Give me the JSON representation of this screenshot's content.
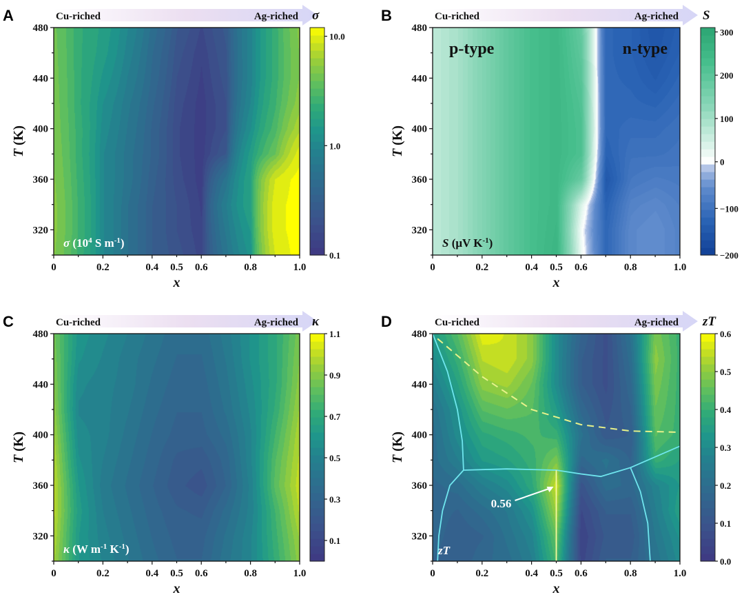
{
  "chart_data": [
    {
      "panel": "A",
      "type": "heatmap",
      "title": "σ",
      "colorbar_title": "σ",
      "inset_label": {
        "symbol": "σ",
        "text": " (10",
        "sup1": "4",
        "mid": " S m",
        "sup2": "-1",
        "end": ")"
      },
      "xlabel": "x",
      "ylabel": "T (K)",
      "xlim": [
        0,
        1.0
      ],
      "ylim": [
        300,
        480
      ],
      "x_ticks": [
        "0",
        "0.2",
        "0.4",
        "0.5",
        "0.6",
        "0.8",
        "1.0"
      ],
      "x_tick_values": [
        0,
        0.2,
        0.4,
        0.5,
        0.6,
        0.8,
        1.0
      ],
      "y_ticks": [
        "320",
        "360",
        "400",
        "440",
        "480"
      ],
      "y_tick_values": [
        320,
        360,
        400,
        440,
        480
      ],
      "colormap": "viridis",
      "colorbar_scale": "log",
      "colorbar_range": [
        0.1,
        12
      ],
      "colorbar_ticks": [
        "0.1",
        "1.0",
        "10.0"
      ],
      "colorbar_tick_values": [
        0.1,
        1.0,
        10.0
      ],
      "composition_arrow": {
        "left": "Cu-riched",
        "right": "Ag-riched"
      },
      "x": [
        0,
        0.1,
        0.2,
        0.3,
        0.4,
        0.5,
        0.6,
        0.7,
        0.8,
        0.9,
        1.0
      ],
      "y": [
        300,
        320,
        340,
        360,
        380,
        400,
        420,
        440,
        460,
        480
      ],
      "z": [
        [
          5.0,
          2.5,
          1.0,
          0.55,
          0.3,
          0.22,
          0.15,
          0.6,
          1.3,
          9.0,
          12.0
        ],
        [
          5.2,
          2.6,
          1.0,
          0.55,
          0.3,
          0.2,
          0.14,
          0.7,
          1.5,
          10.0,
          12.0
        ],
        [
          5.2,
          2.6,
          1.0,
          0.55,
          0.3,
          0.2,
          0.13,
          0.8,
          1.8,
          10.0,
          12.0
        ],
        [
          5.0,
          2.5,
          1.0,
          0.6,
          0.32,
          0.18,
          0.12,
          0.6,
          1.8,
          9.0,
          12.0
        ],
        [
          4.8,
          2.4,
          1.0,
          0.6,
          0.35,
          0.17,
          0.12,
          0.25,
          1.6,
          4.0,
          10.0
        ],
        [
          4.6,
          2.4,
          1.1,
          0.65,
          0.35,
          0.17,
          0.12,
          0.2,
          1.2,
          3.0,
          7.0
        ],
        [
          4.5,
          2.3,
          1.2,
          0.7,
          0.38,
          0.18,
          0.12,
          0.2,
          1.0,
          2.6,
          5.5
        ],
        [
          4.4,
          2.3,
          1.4,
          0.8,
          0.42,
          0.2,
          0.13,
          0.22,
          0.9,
          2.4,
          5.0
        ],
        [
          4.3,
          2.3,
          1.6,
          0.9,
          0.45,
          0.22,
          0.14,
          0.24,
          0.9,
          2.4,
          5.0
        ],
        [
          4.2,
          2.3,
          1.7,
          1.0,
          0.5,
          0.25,
          0.16,
          0.26,
          0.9,
          2.4,
          5.2
        ]
      ]
    },
    {
      "panel": "B",
      "type": "heatmap",
      "title": "S",
      "colorbar_title": "S",
      "inset_label": {
        "symbol": "S",
        "text": " (μV K",
        "sup1": "-1",
        "end": ")"
      },
      "region_labels": [
        "p-type",
        "n-type"
      ],
      "xlabel": "x",
      "ylabel": "T (K)",
      "xlim": [
        0,
        1.0
      ],
      "ylim": [
        300,
        480
      ],
      "x_ticks": [
        "0",
        "0.2",
        "0.4",
        "0.5",
        "0.6",
        "0.8",
        "1.0"
      ],
      "x_tick_values": [
        0,
        0.2,
        0.4,
        0.5,
        0.6,
        0.8,
        1.0
      ],
      "y_ticks": [
        "320",
        "360",
        "400",
        "440",
        "480"
      ],
      "y_tick_values": [
        320,
        360,
        400,
        440,
        480
      ],
      "colormap": "green-white-blue diverging",
      "colorbar_scale": "linear",
      "colorbar_range": [
        -200,
        310
      ],
      "colorbar_ticks": [
        "300",
        "200",
        "100",
        "0",
        "−100",
        "−200"
      ],
      "colorbar_tick_values": [
        300,
        200,
        100,
        0,
        -100,
        -200
      ],
      "composition_arrow": {
        "left": "Cu-riched",
        "right": "Ag-riched"
      },
      "x": [
        0,
        0.1,
        0.2,
        0.3,
        0.4,
        0.5,
        0.6,
        0.7,
        0.8,
        0.9,
        1.0
      ],
      "y": [
        300,
        320,
        340,
        360,
        380,
        400,
        420,
        440,
        460,
        480
      ],
      "z": [
        [
          70,
          95,
          140,
          190,
          230,
          260,
          20,
          -120,
          -60,
          -50,
          -70
        ],
        [
          70,
          95,
          140,
          190,
          230,
          255,
          10,
          -120,
          -60,
          -50,
          -70
        ],
        [
          70,
          95,
          140,
          190,
          230,
          250,
          40,
          -130,
          -70,
          -60,
          -75
        ],
        [
          70,
          95,
          140,
          190,
          230,
          250,
          180,
          -150,
          -90,
          -80,
          -85
        ],
        [
          70,
          95,
          140,
          190,
          230,
          250,
          220,
          -130,
          -100,
          -100,
          -95
        ],
        [
          70,
          95,
          140,
          190,
          230,
          250,
          220,
          -120,
          -110,
          -110,
          -100
        ],
        [
          70,
          95,
          140,
          190,
          230,
          250,
          215,
          -120,
          -120,
          -125,
          -110
        ],
        [
          70,
          95,
          140,
          190,
          230,
          250,
          205,
          -120,
          -125,
          -140,
          -120
        ],
        [
          70,
          95,
          140,
          190,
          230,
          250,
          195,
          -120,
          -130,
          -150,
          -130
        ],
        [
          70,
          95,
          140,
          190,
          230,
          250,
          185,
          -120,
          -130,
          -155,
          -135
        ]
      ]
    },
    {
      "panel": "C",
      "type": "heatmap",
      "title": "κ",
      "colorbar_title": "κ",
      "inset_label": {
        "symbol": "κ",
        "text": " (W m",
        "sup1": "-1",
        "mid": " K",
        "sup2": "-1",
        "end": ")"
      },
      "xlabel": "x",
      "ylabel": "T (K)",
      "xlim": [
        0,
        1.0
      ],
      "ylim": [
        300,
        480
      ],
      "x_ticks": [
        "0",
        "0.2",
        "0.4",
        "0.5",
        "0.6",
        "0.8",
        "1.0"
      ],
      "x_tick_values": [
        0,
        0.2,
        0.4,
        0.5,
        0.6,
        0.8,
        1.0
      ],
      "y_ticks": [
        "320",
        "360",
        "400",
        "440",
        "480"
      ],
      "y_tick_values": [
        320,
        360,
        400,
        440,
        480
      ],
      "colormap": "viridis",
      "colorbar_scale": "linear",
      "colorbar_range": [
        0.0,
        1.1
      ],
      "colorbar_ticks": [
        "1.1",
        "0.9",
        "0.7",
        "0.5",
        "0.3",
        "0.1"
      ],
      "colorbar_tick_values": [
        1.1,
        0.9,
        0.7,
        0.5,
        0.3,
        0.1
      ],
      "composition_arrow": {
        "left": "Cu-riched",
        "right": "Ag-riched"
      },
      "x": [
        0,
        0.1,
        0.2,
        0.3,
        0.4,
        0.5,
        0.6,
        0.7,
        0.8,
        0.9,
        1.0
      ],
      "y": [
        300,
        320,
        340,
        360,
        380,
        400,
        420,
        440,
        460,
        480
      ],
      "z": [
        [
          0.95,
          0.62,
          0.52,
          0.44,
          0.36,
          0.3,
          0.3,
          0.42,
          0.52,
          0.72,
          0.92
        ],
        [
          0.98,
          0.62,
          0.5,
          0.42,
          0.34,
          0.28,
          0.28,
          0.4,
          0.52,
          0.74,
          0.95
        ],
        [
          1.0,
          0.64,
          0.48,
          0.4,
          0.32,
          0.26,
          0.24,
          0.36,
          0.5,
          0.76,
          1.0
        ],
        [
          1.0,
          0.62,
          0.46,
          0.38,
          0.3,
          0.22,
          0.18,
          0.3,
          0.5,
          0.82,
          1.02
        ],
        [
          0.98,
          0.58,
          0.48,
          0.4,
          0.32,
          0.24,
          0.22,
          0.32,
          0.52,
          0.8,
          1.0
        ],
        [
          0.95,
          0.55,
          0.5,
          0.42,
          0.34,
          0.28,
          0.28,
          0.36,
          0.52,
          0.76,
          0.98
        ],
        [
          0.92,
          0.52,
          0.5,
          0.44,
          0.36,
          0.3,
          0.3,
          0.4,
          0.54,
          0.72,
          0.95
        ],
        [
          0.9,
          0.54,
          0.5,
          0.46,
          0.38,
          0.32,
          0.32,
          0.42,
          0.56,
          0.7,
          0.92
        ],
        [
          0.88,
          0.58,
          0.52,
          0.46,
          0.4,
          0.34,
          0.34,
          0.44,
          0.58,
          0.7,
          0.9
        ],
        [
          0.86,
          0.6,
          0.54,
          0.48,
          0.42,
          0.36,
          0.36,
          0.46,
          0.58,
          0.7,
          0.88
        ]
      ]
    },
    {
      "panel": "D",
      "type": "heatmap",
      "title": "zT",
      "colorbar_title": "zT",
      "inset_label": {
        "symbol": "zT"
      },
      "annotation": {
        "text": "0.56",
        "x": 0.5,
        "y": 360
      },
      "xlabel": "x",
      "ylabel": "T (K)",
      "xlim": [
        0,
        1.0
      ],
      "ylim": [
        300,
        480
      ],
      "x_ticks": [
        "0",
        "0.2",
        "0.4",
        "0.5",
        "0.6",
        "0.8",
        "1.0"
      ],
      "x_tick_values": [
        0,
        0.2,
        0.4,
        0.5,
        0.6,
        0.8,
        1.0
      ],
      "y_ticks": [
        "320",
        "360",
        "400",
        "440",
        "480"
      ],
      "y_tick_values": [
        320,
        360,
        400,
        440,
        480
      ],
      "colormap": "viridis",
      "colorbar_scale": "linear",
      "colorbar_range": [
        0.0,
        0.6
      ],
      "colorbar_ticks": [
        "0.6",
        "0.5",
        "0.4",
        "0.3",
        "0.2",
        "0.1",
        "0.0"
      ],
      "colorbar_tick_values": [
        0.6,
        0.5,
        0.4,
        0.3,
        0.2,
        0.1,
        0.0
      ],
      "composition_arrow": {
        "left": "Cu-riched",
        "right": "Ag-riched"
      },
      "x": [
        0,
        0.1,
        0.2,
        0.3,
        0.4,
        0.5,
        0.6,
        0.7,
        0.8,
        0.9,
        1.0
      ],
      "y": [
        300,
        320,
        340,
        360,
        380,
        400,
        420,
        440,
        460,
        480
      ],
      "z": [
        [
          0.16,
          0.14,
          0.18,
          0.2,
          0.26,
          0.42,
          0.05,
          0.14,
          0.14,
          0.22,
          0.3
        ],
        [
          0.18,
          0.14,
          0.16,
          0.22,
          0.28,
          0.46,
          0.04,
          0.12,
          0.12,
          0.24,
          0.32
        ],
        [
          0.18,
          0.16,
          0.2,
          0.24,
          0.32,
          0.52,
          0.06,
          0.14,
          0.14,
          0.26,
          0.36
        ],
        [
          0.18,
          0.2,
          0.26,
          0.3,
          0.38,
          0.56,
          0.1,
          0.2,
          0.18,
          0.28,
          0.34
        ],
        [
          0.2,
          0.26,
          0.34,
          0.36,
          0.4,
          0.48,
          0.18,
          0.22,
          0.16,
          0.4,
          0.36
        ],
        [
          0.2,
          0.3,
          0.38,
          0.4,
          0.42,
          0.4,
          0.22,
          0.12,
          0.14,
          0.44,
          0.4
        ],
        [
          0.22,
          0.32,
          0.44,
          0.46,
          0.44,
          0.34,
          0.18,
          0.1,
          0.16,
          0.46,
          0.4
        ],
        [
          0.26,
          0.36,
          0.5,
          0.52,
          0.46,
          0.3,
          0.14,
          0.08,
          0.18,
          0.48,
          0.4
        ],
        [
          0.3,
          0.4,
          0.54,
          0.56,
          0.5,
          0.3,
          0.14,
          0.08,
          0.2,
          0.5,
          0.4
        ],
        [
          0.34,
          0.44,
          0.58,
          0.56,
          0.5,
          0.3,
          0.16,
          0.08,
          0.22,
          0.48,
          0.4
        ]
      ],
      "phase_boundaries": {
        "solid_lines": [
          [
            [
              0.0,
              480
            ],
            [
              0.06,
              450
            ],
            [
              0.1,
              420
            ],
            [
              0.12,
              395
            ],
            [
              0.125,
              372
            ]
          ],
          [
            [
              0.125,
              372
            ],
            [
              0.3,
              373
            ],
            [
              0.5,
              372
            ],
            [
              0.6,
              369
            ],
            [
              0.68,
              367
            ],
            [
              0.8,
              374
            ],
            [
              1.0,
              391
            ]
          ],
          [
            [
              0.125,
              372
            ],
            [
              0.07,
              360
            ],
            [
              0.04,
              340
            ],
            [
              0.025,
              320
            ],
            [
              0.02,
              300
            ]
          ],
          [
            [
              0.5,
              372
            ],
            [
              0.5,
              300
            ]
          ],
          [
            [
              0.8,
              374
            ],
            [
              0.84,
              355
            ],
            [
              0.87,
              330
            ],
            [
              0.88,
              300
            ]
          ]
        ],
        "dashed_line": [
          [
            0.02,
            476
          ],
          [
            0.2,
            446
          ],
          [
            0.4,
            420
          ],
          [
            0.6,
            408
          ],
          [
            0.8,
            403
          ],
          [
            1.0,
            402
          ]
        ]
      }
    }
  ]
}
